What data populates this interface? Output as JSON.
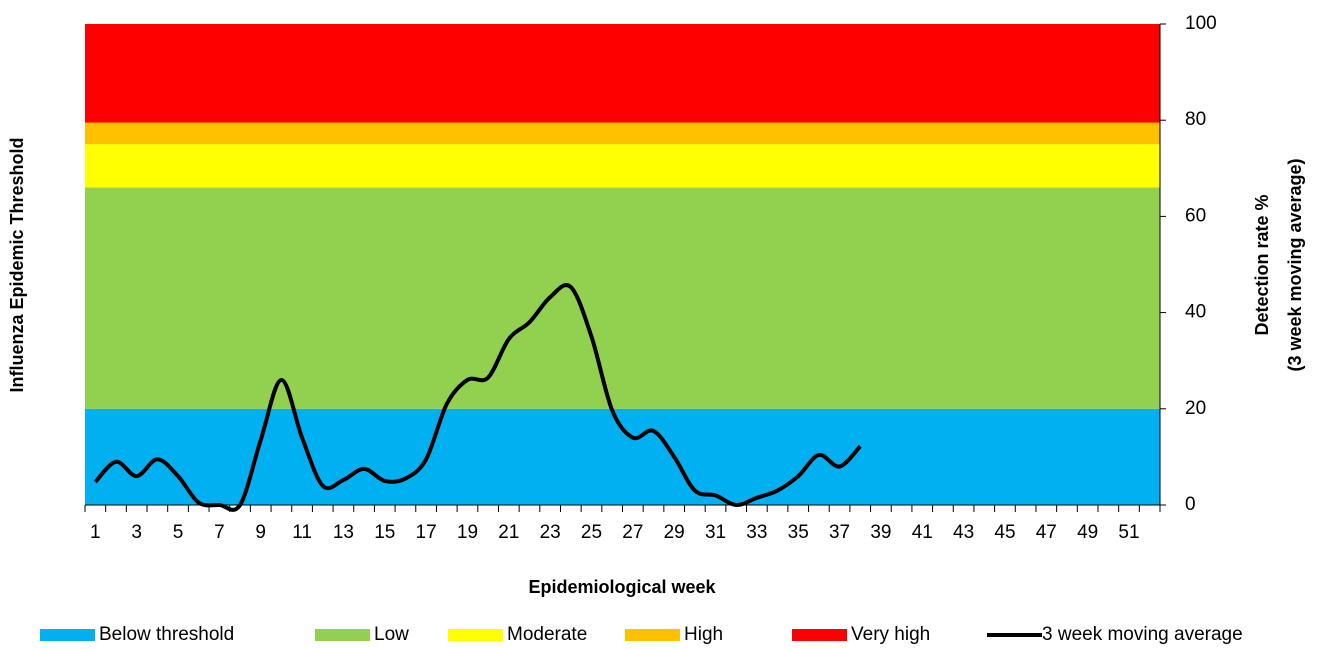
{
  "chart_data": {
    "type": "line",
    "y_title": "Influenza Epidemic Threshold",
    "y2_title": [
      "Detection rate %",
      "(3 week moving average)"
    ],
    "x_title": "Epidemiological week",
    "categories": [
      1,
      null,
      3,
      null,
      5,
      null,
      7,
      null,
      9,
      null,
      11,
      null,
      13,
      null,
      15,
      null,
      17,
      null,
      19,
      null,
      21,
      null,
      23,
      null,
      25,
      null,
      27,
      null,
      29,
      null,
      31,
      null,
      33,
      null,
      35,
      null,
      37,
      null,
      39,
      null,
      41,
      null,
      43,
      null,
      45,
      null,
      47,
      null,
      49,
      null,
      51,
      null
    ],
    "bands": [
      {
        "name": "Below threshold",
        "color": "#00b0f0",
        "value": 20
      },
      {
        "name": "Low",
        "color": "#92d050",
        "value": 46
      },
      {
        "name": "Moderate",
        "color": "#ffff00",
        "value": 9
      },
      {
        "name": "High",
        "color": "#ffc000",
        "value": 4.5
      },
      {
        "name": "Very high",
        "color": "#ff0000",
        "value": 20.5
      }
    ],
    "series": [
      {
        "name": "3 week moving average",
        "color": "#000000",
        "axis": "y2",
        "values": [
          4.8,
          9,
          6,
          9.5,
          6,
          0.5,
          0,
          0,
          13.5,
          26,
          14,
          4,
          5.2,
          7.5,
          5,
          5.5,
          9.5,
          21,
          26,
          26.5,
          34.5,
          38,
          43.2,
          45.3,
          35,
          19.7,
          14,
          15.4,
          10,
          3,
          2,
          0,
          1.5,
          3,
          6,
          10.4,
          8,
          12.2,
          null,
          null,
          null,
          null,
          null,
          null,
          null,
          null,
          null,
          null,
          null,
          null,
          null,
          null
        ]
      }
    ],
    "y2lim": [
      0,
      100
    ],
    "y2ticks": [
      0,
      20,
      40,
      60,
      80,
      100
    ],
    "legend": "bottom"
  }
}
